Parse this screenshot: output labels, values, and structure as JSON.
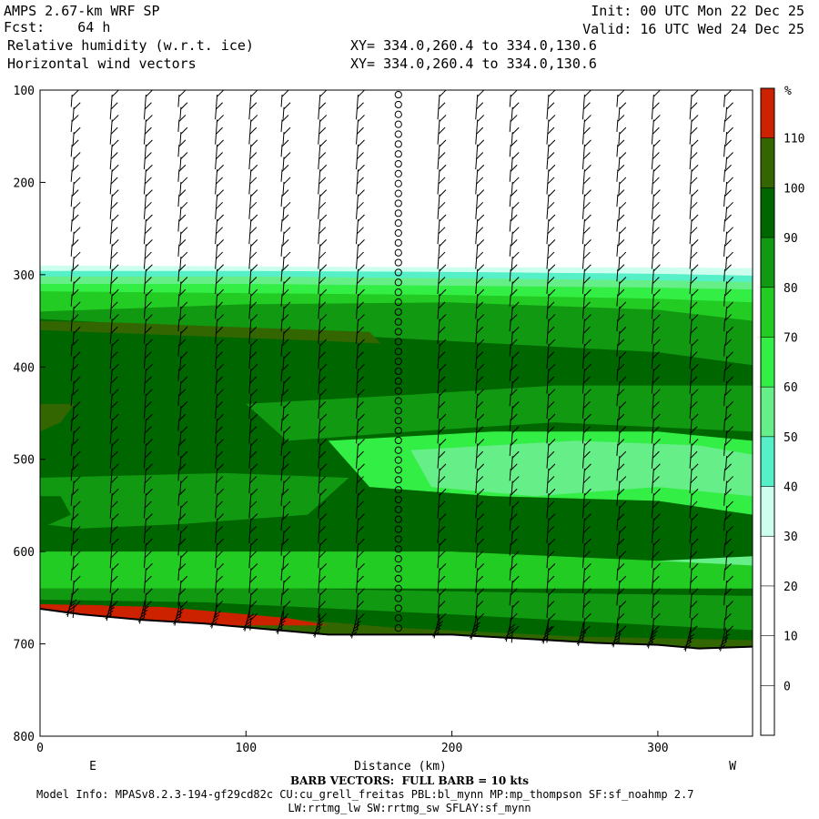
{
  "header": {
    "model": "AMPS 2.67-km WRF SP",
    "fcst": "Fcst:    64 h",
    "field1": "Relative humidity (w.r.t. ice)",
    "field2": "Horizontal wind vectors",
    "init": "Init: 00 UTC Mon 22 Dec 25",
    "valid": "Valid: 16 UTC Wed 24 Dec 25",
    "xy1": "XY= 334.0,260.4 to 334.0,130.6",
    "xy2": "XY= 334.0,260.4 to 334.0,130.6"
  },
  "footer": {
    "barb": "BARB VECTORS:  FULL BARB = 10 kts",
    "model_info": "Model Info: MPASv8.2.3-194-gf29cd82c CU:cu_grell_freitas PBL:bl_mynn MP:mp_thompson SF:sf_noahmp 2.7",
    "model_info2": "LW:rrtmg_lw SW:rrtmg_sw SFLAY:sf_mynn"
  },
  "chart_data": {
    "type": "heatmap",
    "title": "Relative humidity (w.r.t. ice)",
    "xlabel": "Distance (km)",
    "ylabel": "",
    "x_end_labels": [
      "E",
      "W"
    ],
    "xlim": [
      0,
      346
    ],
    "ylim": [
      800,
      100
    ],
    "xticks": [
      0,
      100,
      200,
      300
    ],
    "yticks": [
      100,
      200,
      300,
      400,
      500,
      600,
      700,
      800
    ],
    "colorbar": {
      "unit": "%",
      "levels": [
        0,
        10,
        20,
        30,
        40,
        50,
        60,
        70,
        80,
        90,
        100,
        110
      ],
      "colors": [
        "#ffffff",
        "#ffffff",
        "#ffffff",
        "#ccffee",
        "#55f0c8",
        "#66ee88",
        "#33ee44",
        "#22cc22",
        "#119911",
        "#006600",
        "#336600",
        "#cc2200"
      ]
    },
    "terrain_pressure": {
      "x": [
        0,
        20,
        50,
        80,
        110,
        140,
        170,
        200,
        240,
        270,
        300,
        320,
        346
      ],
      "p": [
        662,
        668,
        674,
        678,
        684,
        690,
        690,
        690,
        695,
        699,
        701,
        705,
        703
      ]
    },
    "layers": [
      {
        "level": 30,
        "top_x": [
          0,
          100,
          200,
          300,
          346
        ],
        "top_p": [
          290,
          291,
          292,
          292,
          293
        ]
      },
      {
        "level": 40,
        "top_x": [
          0,
          100,
          200,
          300,
          346
        ],
        "top_p": [
          296,
          296,
          297,
          299,
          301
        ]
      },
      {
        "level": 50,
        "top_x": [
          0,
          100,
          200,
          300,
          346
        ],
        "top_p": [
          302,
          302,
          304,
          306,
          308
        ]
      },
      {
        "level": 60,
        "top_x": [
          0,
          100,
          200,
          300,
          346
        ],
        "top_p": [
          310,
          310,
          312,
          314,
          316
        ]
      },
      {
        "level": 70,
        "top_x": [
          0,
          100,
          200,
          300,
          346
        ],
        "top_p": [
          318,
          320,
          322,
          326,
          330
        ]
      },
      {
        "level": 80,
        "top_x": [
          0,
          100,
          200,
          300,
          346
        ],
        "top_p": [
          340,
          332,
          330,
          338,
          350
        ]
      },
      {
        "level": 90,
        "top_x": [
          0,
          100,
          200,
          300,
          346
        ],
        "top_p": [
          348,
          360,
          372,
          384,
          398
        ]
      }
    ],
    "barbs": {
      "x": [
        16,
        35,
        51,
        68,
        86,
        102,
        118,
        136,
        154,
        174,
        194,
        212,
        229,
        247,
        264,
        281,
        298,
        316,
        333
      ],
      "speed_kts": 20,
      "calm_column_x": 174
    }
  }
}
